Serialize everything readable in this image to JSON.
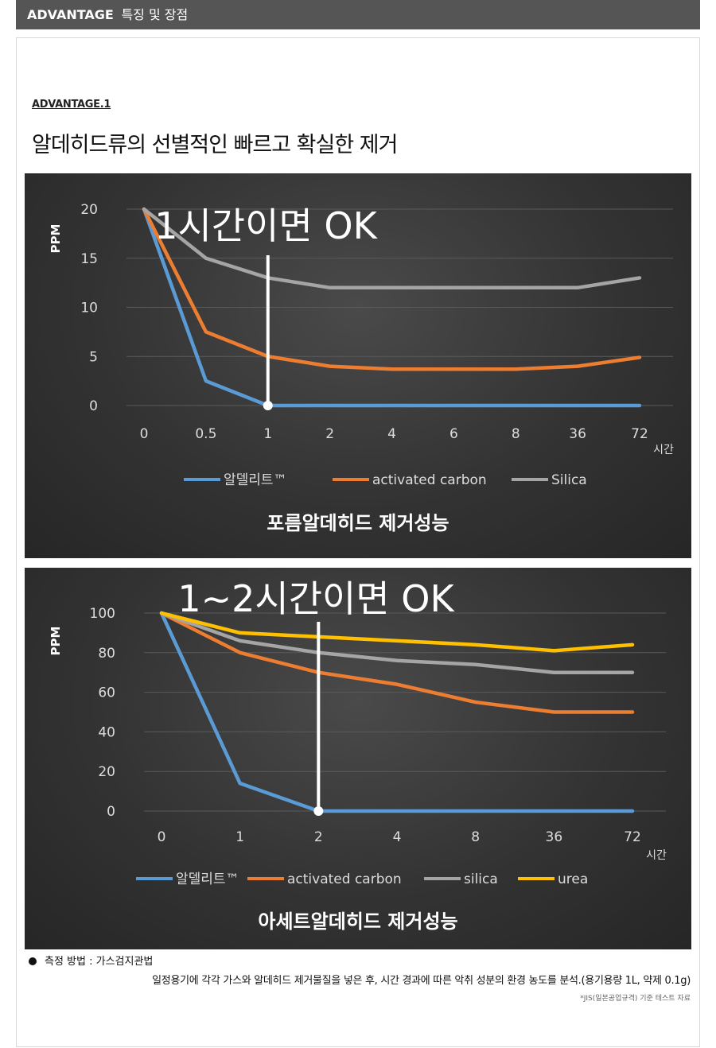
{
  "header": {
    "title": "ADVANTAGE",
    "subtitle": "특징 및 장점"
  },
  "section": {
    "label": "ADVANTAGE.1",
    "title": "알데히드류의 선별적인 빠르고 확실한 제거"
  },
  "colors": {
    "blue": "#5b9bd5",
    "orange": "#ed7d31",
    "gray": "#a5a5a5",
    "yellow": "#ffc000",
    "header_bg": "#555555",
    "chart_bg": "#333333"
  },
  "chart_data": [
    {
      "type": "line",
      "title": "포름알데히드 제거성능",
      "annotation": "1시간이면 OK",
      "annotation_x": "1",
      "ylabel": "PPM",
      "xlabel": "시간",
      "ylim": [
        0,
        20
      ],
      "yticks": [
        "0",
        "5",
        "10",
        "15",
        "20"
      ],
      "categories": [
        "0",
        "0.5",
        "1",
        "2",
        "4",
        "6",
        "8",
        "36",
        "72"
      ],
      "series": [
        {
          "name": "알델리트™",
          "color": "#5b9bd5",
          "values": [
            20,
            2.5,
            0,
            0,
            0,
            0,
            0,
            0,
            0
          ]
        },
        {
          "name": "activated carbon",
          "color": "#ed7d31",
          "values": [
            20,
            7.5,
            5,
            4,
            3.7,
            3.7,
            3.7,
            4,
            4.9
          ]
        },
        {
          "name": "Silica",
          "color": "#a5a5a5",
          "values": [
            20,
            15,
            13,
            12,
            12,
            12,
            12,
            12,
            13
          ]
        }
      ],
      "legend": "bottom",
      "grid": true
    },
    {
      "type": "line",
      "title": "아세트알데히드 제거성능",
      "annotation": "1~2시간이면 OK",
      "annotation_x": "2",
      "ylabel": "PPM",
      "xlabel": "시간",
      "ylim": [
        0,
        100
      ],
      "yticks": [
        "0",
        "20",
        "40",
        "60",
        "80",
        "100"
      ],
      "categories": [
        "0",
        "1",
        "2",
        "4",
        "8",
        "36",
        "72"
      ],
      "series": [
        {
          "name": "알델리트™",
          "color": "#5b9bd5",
          "values": [
            100,
            14,
            0,
            0,
            0,
            0,
            0
          ]
        },
        {
          "name": "activated carbon",
          "color": "#ed7d31",
          "values": [
            100,
            80,
            70,
            64,
            55,
            50,
            50
          ]
        },
        {
          "name": "silica",
          "color": "#a5a5a5",
          "values": [
            100,
            86,
            80,
            76,
            74,
            70,
            70
          ]
        },
        {
          "name": "urea",
          "color": "#ffc000",
          "values": [
            100,
            90,
            88,
            86,
            84,
            81,
            84
          ]
        }
      ],
      "legend": "bottom",
      "grid": true
    }
  ],
  "note": {
    "method_label": "측정 방법 : 가스검지관법",
    "description": "일정용기에 각각 가스와 알데히드 제거물질을 넣은 후, 시간 경과에 따른 악취 성분의 환경 농도를 분석.(용기용량 1L, 약제 0.1g)",
    "source": "*JIS(일본공업규격) 기준 테스트 자료"
  }
}
